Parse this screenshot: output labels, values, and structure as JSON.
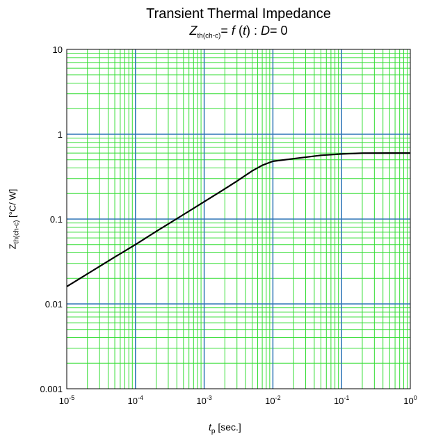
{
  "chart_data": {
    "type": "line",
    "title": "Transient Thermal Impedance",
    "subtitle": {
      "symbol": "Z",
      "symbol_sub": "th(ch-c)",
      "eq": "= ",
      "func": "f",
      "arg_open": " (",
      "arg": "t",
      "arg_close": ") : ",
      "d_symbol": "D",
      "d_value": "= 0"
    },
    "xlabel": {
      "symbol": "t",
      "sub": "p",
      "unit": " [sec.]"
    },
    "ylabel": {
      "symbol": "Z",
      "sub": "th(ch-c)",
      "unit": " [°C/ W]"
    },
    "x_scale": "log",
    "y_scale": "log",
    "xlim": [
      1e-05,
      1
    ],
    "ylim": [
      0.001,
      10
    ],
    "x_ticks": [
      {
        "base": "10",
        "exp": "-5"
      },
      {
        "base": "10",
        "exp": "-4"
      },
      {
        "base": "10",
        "exp": "-3"
      },
      {
        "base": "10",
        "exp": "-2"
      },
      {
        "base": "10",
        "exp": "-1"
      },
      {
        "base": "10",
        "exp": "0"
      }
    ],
    "y_ticks": [
      "0.001",
      "0.01",
      "0.1",
      "1",
      "10"
    ],
    "grid": true,
    "colors": {
      "major_grid": "#2e75b6",
      "minor_grid": "#33dd33",
      "line": "#000000"
    },
    "series": [
      {
        "x": [
          1e-05,
          2e-05,
          5e-05,
          0.0001,
          0.0002,
          0.0005,
          0.001,
          0.002,
          0.003,
          0.005,
          0.007,
          0.01,
          0.02,
          0.05,
          0.1,
          0.2,
          0.5,
          1
        ],
        "y": [
          0.016,
          0.0226,
          0.0357,
          0.05,
          0.0715,
          0.113,
          0.16,
          0.227,
          0.28,
          0.37,
          0.43,
          0.48,
          0.515,
          0.565,
          0.585,
          0.598,
          0.6,
          0.6
        ]
      }
    ]
  }
}
